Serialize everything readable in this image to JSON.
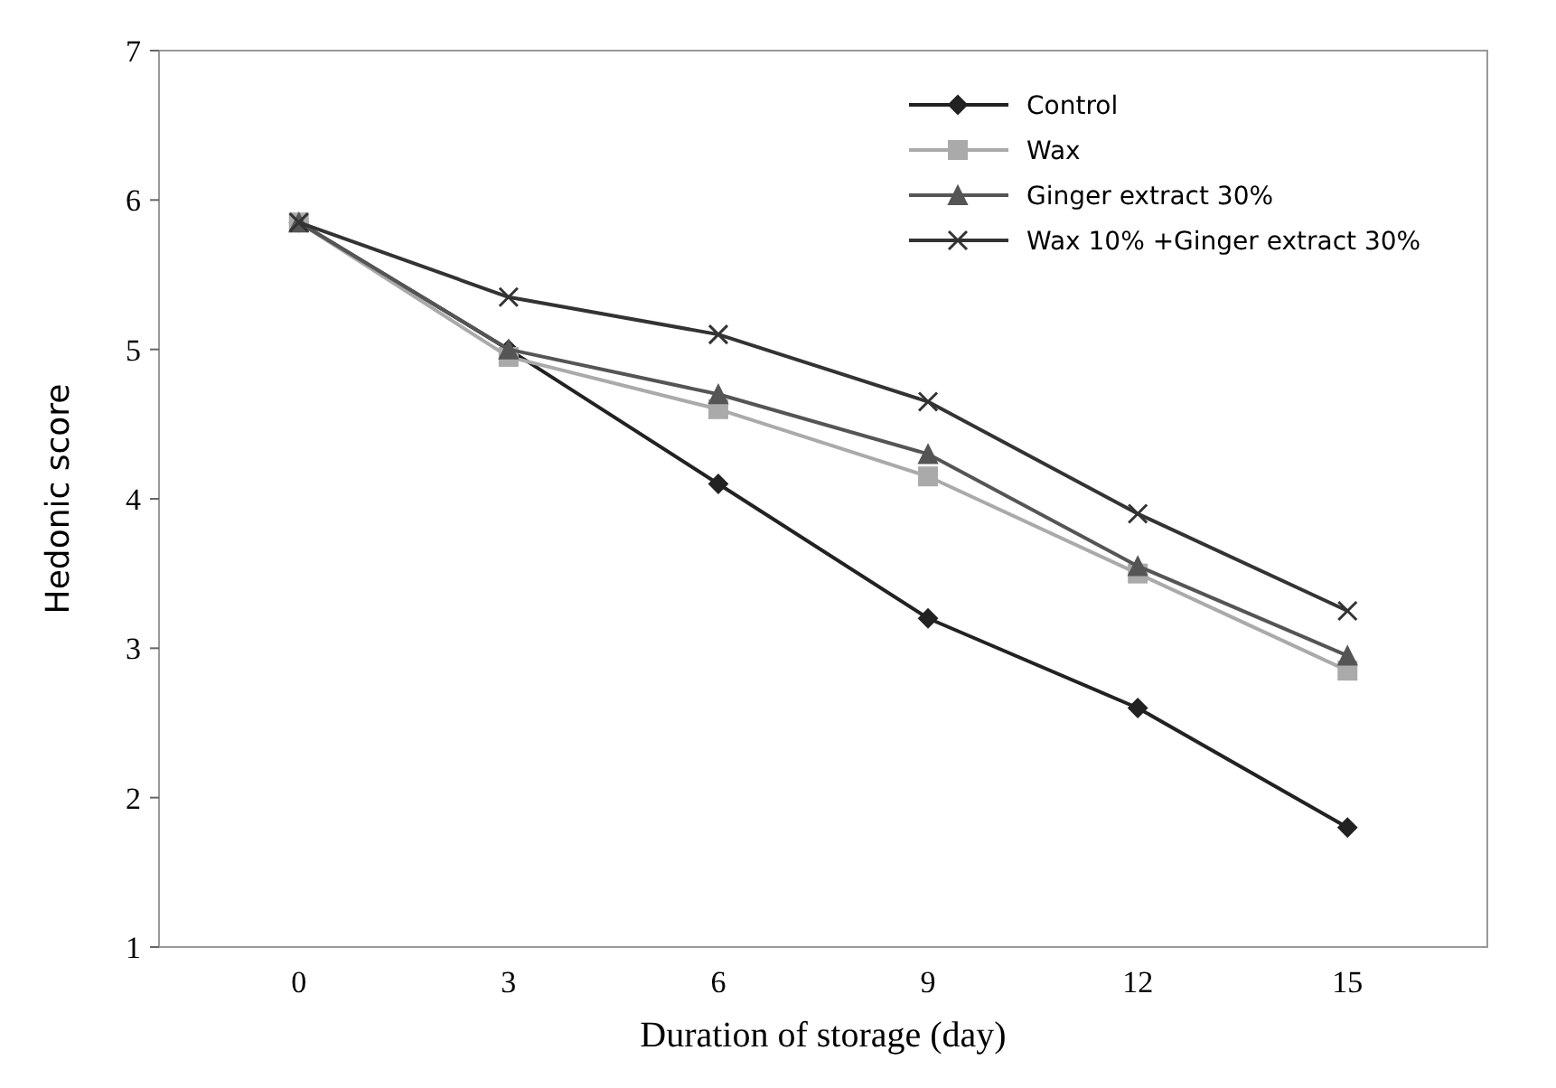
{
  "chart_data": {
    "type": "line",
    "xlabel": "Duration of storage (day)",
    "ylabel": "Hedonic score",
    "x": [
      0,
      3,
      6,
      9,
      12,
      15
    ],
    "xlim": [
      -2,
      17
    ],
    "xticks": [
      0,
      3,
      6,
      9,
      12,
      15
    ],
    "ylim": [
      1,
      7
    ],
    "yticks": [
      1,
      2,
      3,
      4,
      5,
      6,
      7
    ],
    "grid": false,
    "legend": "top right",
    "series": [
      {
        "name": "Control",
        "color": "#222222",
        "marker": "diamond",
        "values": [
          5.85,
          5.0,
          4.1,
          3.2,
          2.6,
          1.8
        ]
      },
      {
        "name": "Wax",
        "color": "#aaaaaa",
        "marker": "square",
        "values": [
          5.85,
          4.95,
          4.6,
          4.15,
          3.5,
          2.85
        ]
      },
      {
        "name": "Ginger extract 30%",
        "color": "#555555",
        "marker": "triangle",
        "values": [
          5.85,
          5.0,
          4.7,
          4.3,
          3.55,
          2.95
        ]
      },
      {
        "name": "Wax 10% +Ginger extract 30%",
        "color": "#333333",
        "marker": "cross",
        "values": [
          5.85,
          5.35,
          5.1,
          4.65,
          3.9,
          3.25
        ]
      }
    ]
  }
}
